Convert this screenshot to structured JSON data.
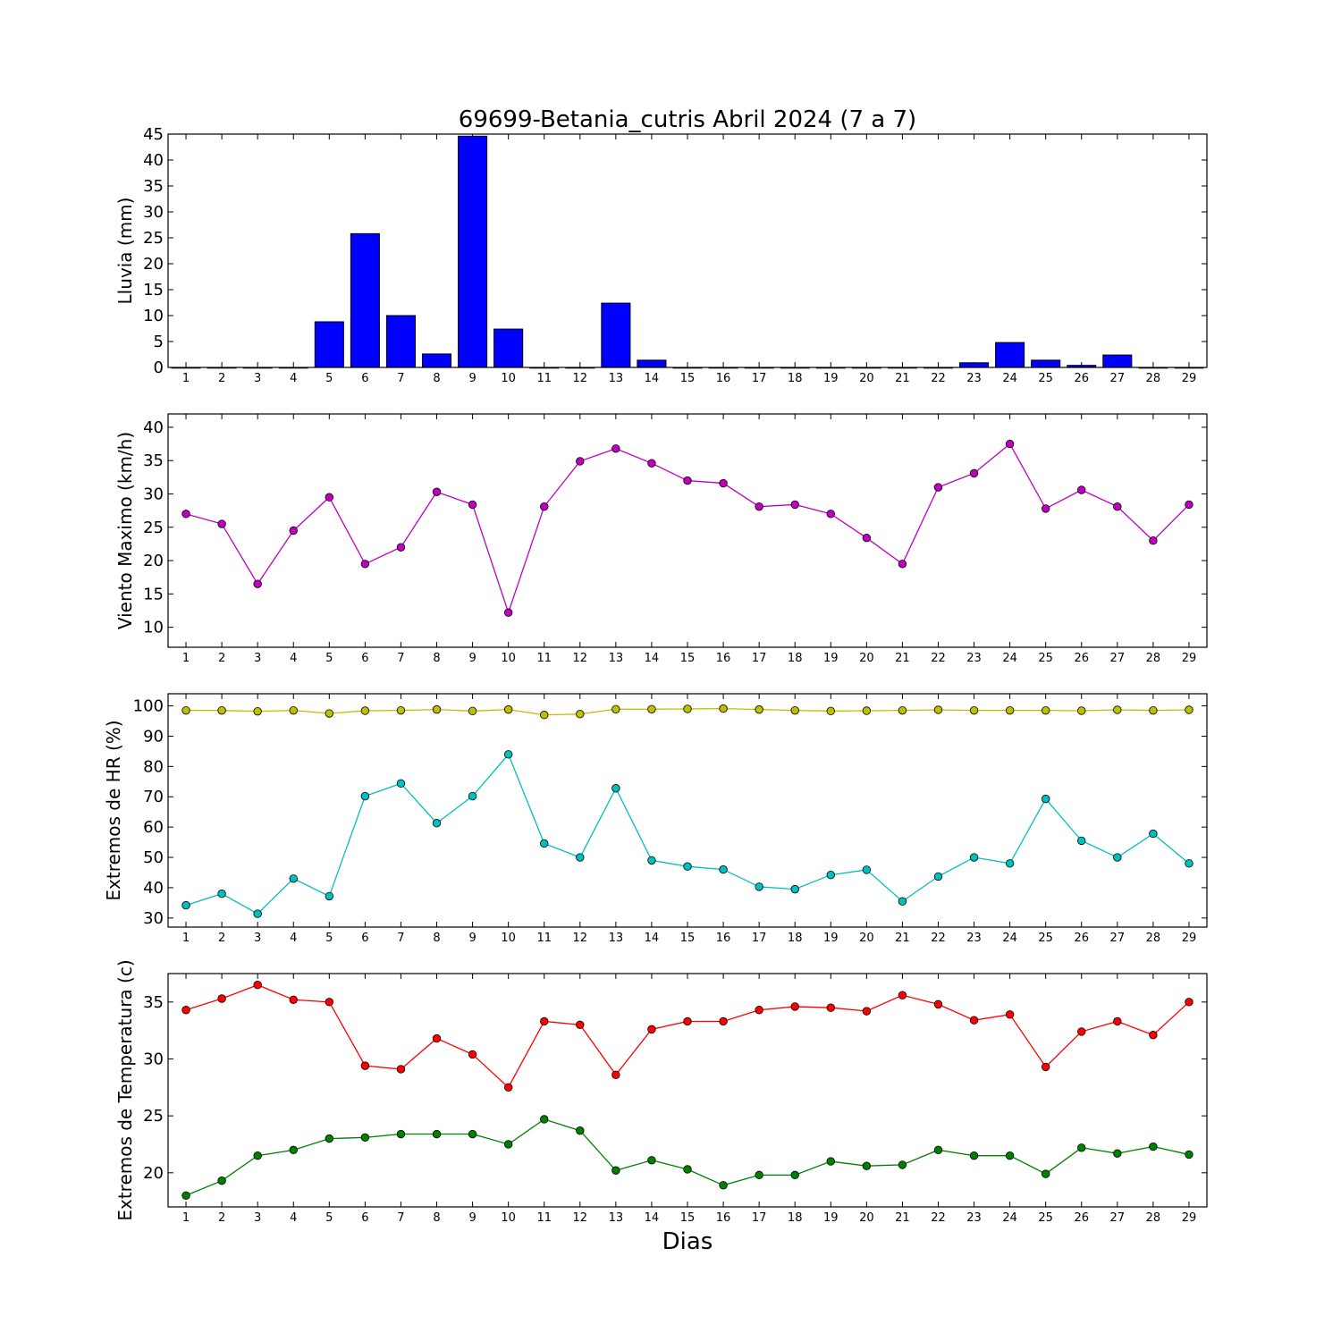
{
  "chart_data": {
    "title": "69699-Betania_cutris Abril 2024  (7 a 7)",
    "xlabel": "Dias",
    "x": [
      1,
      2,
      3,
      4,
      5,
      6,
      7,
      8,
      9,
      10,
      11,
      12,
      13,
      14,
      15,
      16,
      17,
      18,
      19,
      20,
      21,
      22,
      23,
      24,
      25,
      26,
      27,
      28,
      29
    ],
    "panels": [
      {
        "type": "bar",
        "ylabel": "Lluvia (mm)",
        "ylim": [
          0,
          45
        ],
        "yticks": [
          0,
          5,
          10,
          15,
          20,
          25,
          30,
          35,
          40,
          45
        ],
        "series": [
          {
            "color": "#0000ff",
            "values": [
              0,
              0,
              0,
              0,
              8.8,
              25.8,
              10,
              2.6,
              44.6,
              7.4,
              0,
              0,
              12.4,
              1.4,
              0,
              0,
              0,
              0,
              0,
              0,
              0,
              0,
              0.9,
              4.8,
              1.4,
              0.4,
              2.4,
              0,
              0
            ]
          }
        ]
      },
      {
        "type": "line",
        "ylabel": "Viento Maximo (km/h)",
        "ylim": [
          7,
          42
        ],
        "yticks": [
          10,
          15,
          20,
          25,
          30,
          35,
          40
        ],
        "series": [
          {
            "color": "#bf00bf",
            "values": [
              27,
              25.5,
              16.5,
              24.5,
              29.5,
              19.5,
              22,
              30.3,
              28.4,
              12.2,
              28.1,
              34.9,
              36.8,
              34.6,
              32,
              31.6,
              28.1,
              28.4,
              27,
              23.4,
              19.5,
              31,
              33.1,
              37.5,
              27.8,
              30.6,
              28.1,
              23,
              28.4
            ]
          }
        ]
      },
      {
        "type": "line",
        "ylabel": "Extremos de HR (%)",
        "ylim": [
          27,
          104
        ],
        "yticks": [
          30,
          40,
          50,
          60,
          70,
          80,
          90,
          100
        ],
        "series": [
          {
            "color": "#bfbf00",
            "values": [
              98.5,
              98.5,
              98.2,
              98.5,
              97.5,
              98.4,
              98.5,
              98.8,
              98.3,
              98.8,
              97,
              97.3,
              98.9,
              98.9,
              99,
              99.1,
              98.8,
              98.5,
              98.3,
              98.4,
              98.5,
              98.7,
              98.5,
              98.5,
              98.5,
              98.4,
              98.7,
              98.5,
              98.7
            ]
          },
          {
            "color": "#00bfbf",
            "values": [
              34.2,
              38,
              31.4,
              43,
              37.2,
              70.2,
              74.4,
              61.3,
              70.2,
              84,
              54.6,
              50,
              72.8,
              49,
              47,
              46,
              40.3,
              39.5,
              44.2,
              45.9,
              35.5,
              43.7,
              50,
              48,
              69.3,
              55.5,
              50,
              57.8,
              48
            ]
          }
        ]
      },
      {
        "type": "line",
        "ylabel": "Extremos de Temperatura (c)",
        "ylim": [
          17,
          37.5
        ],
        "yticks": [
          20,
          25,
          30,
          35
        ],
        "series": [
          {
            "color": "#ff0000",
            "values": [
              34.3,
              35.3,
              36.5,
              35.2,
              35,
              29.4,
              29.1,
              31.8,
              30.4,
              27.5,
              33.3,
              33,
              28.6,
              32.6,
              33.3,
              33.3,
              34.3,
              34.6,
              34.5,
              34.2,
              35.6,
              34.8,
              33.4,
              33.9,
              29.3,
              32.4,
              33.3,
              32.1,
              35
            ]
          },
          {
            "color": "#008000",
            "values": [
              18,
              19.3,
              21.5,
              22,
              23,
              23.1,
              23.4,
              23.4,
              23.4,
              22.5,
              24.7,
              23.7,
              20.2,
              21.1,
              20.3,
              18.9,
              19.8,
              19.8,
              21,
              20.6,
              20.7,
              22,
              21.5,
              21.5,
              19.9,
              22.2,
              21.7,
              22.3,
              21.6
            ]
          }
        ]
      }
    ]
  }
}
